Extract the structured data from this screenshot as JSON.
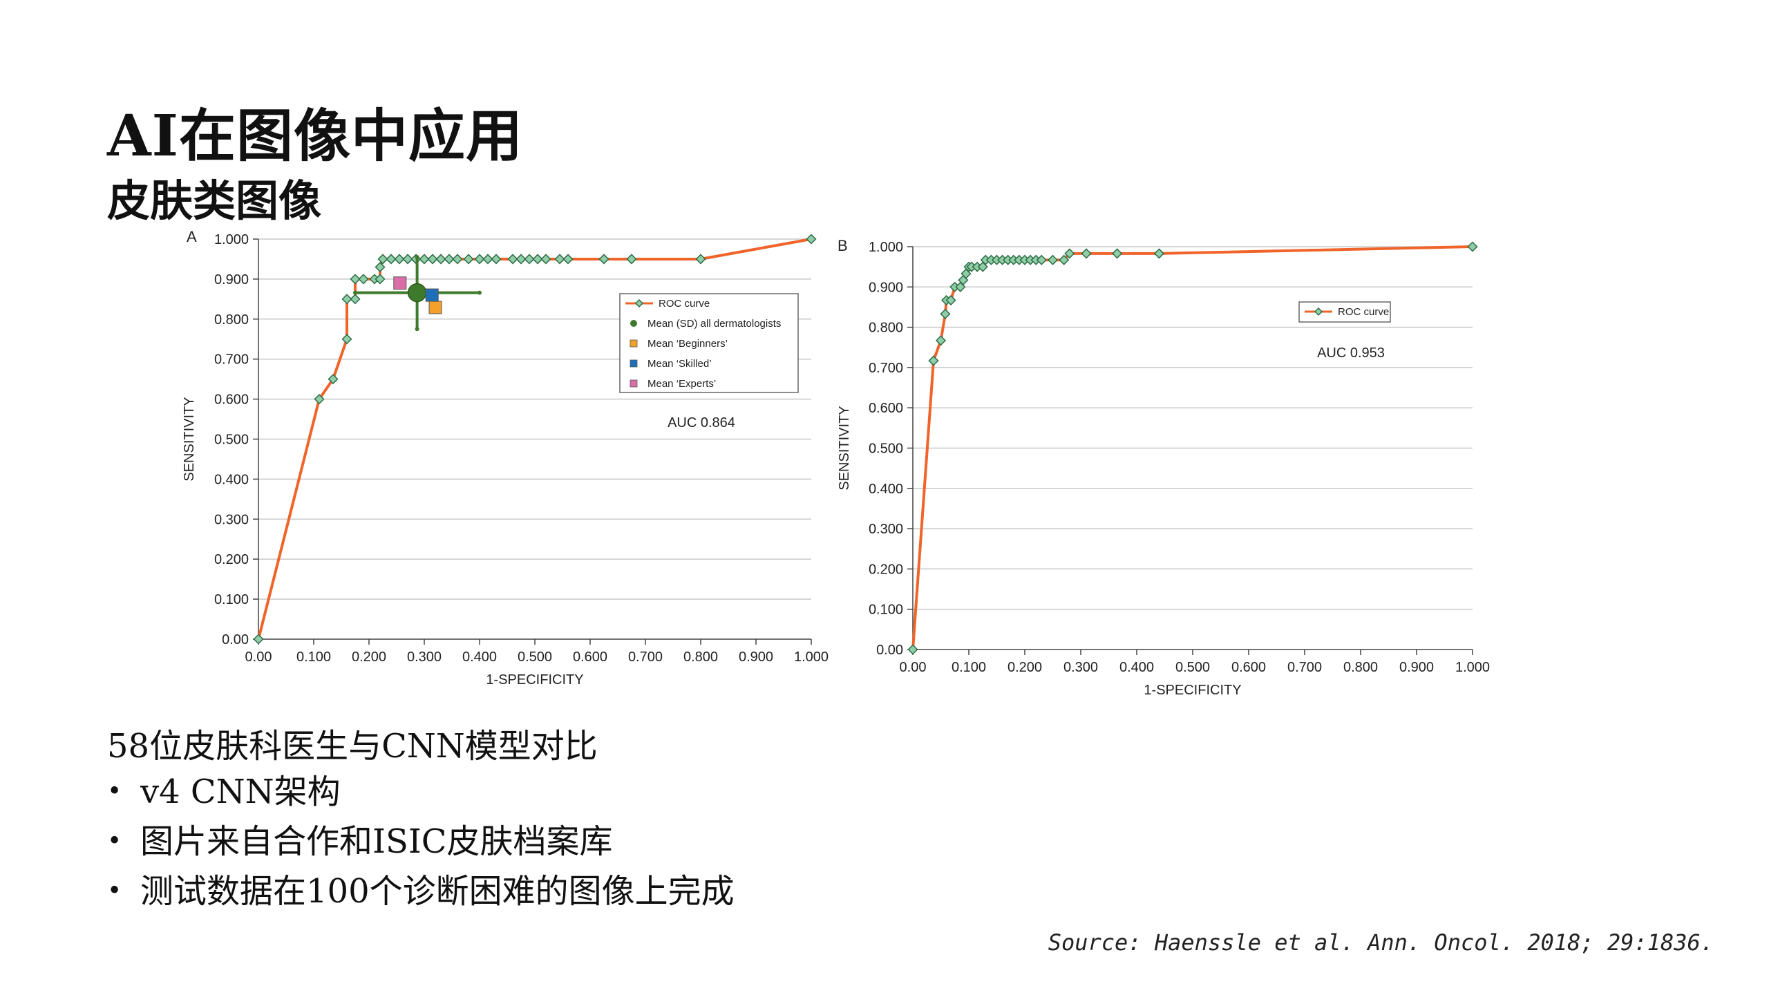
{
  "slide": {
    "title": "AI在图像中应用",
    "subtitle": "皮肤类图像",
    "lead": "58位皮肤科医生与CNN模型对比",
    "bullets": [
      "v4 CNN架构",
      "图片来自合作和ISIC皮肤档案库",
      "测试数据在100个诊断困难的图像上完成"
    ],
    "source": "Source: Haenssle et al. Ann. Oncol. 2018; 29:1836."
  },
  "colors": {
    "roc_line": "#f0642a",
    "marker_fill": "#8fcea6",
    "marker_stroke": "#2e6b46",
    "all_derm": "#3e7a2c",
    "beginners": "#f4a02a",
    "skilled": "#1f6fb8",
    "experts": "#d96fa6",
    "grid": "#c8c8c8"
  },
  "chart_data": [
    {
      "type": "line",
      "panel": "A",
      "xlabel": "1-SPECIFICITY",
      "ylabel": "SENSITIVITY",
      "xlim": [
        0,
        1
      ],
      "ylim": [
        0,
        1
      ],
      "xticks": [
        "0.00",
        "0.100",
        "0.200",
        "0.300",
        "0.400",
        "0.500",
        "0.600",
        "0.700",
        "0.800",
        "0.900",
        "1.000"
      ],
      "yticks": [
        "0.00",
        "0.100",
        "0.200",
        "0.300",
        "0.400",
        "0.500",
        "0.600",
        "0.700",
        "0.800",
        "0.900",
        "1.000"
      ],
      "grid": "horizontal",
      "annotation": "AUC 0.864",
      "legend": {
        "position": "center-right",
        "entries": [
          "ROC curve",
          "Mean (SD) all dermatologists",
          "Mean ‘Beginners’",
          "Mean ‘Skilled’",
          "Mean ‘Experts’"
        ]
      },
      "series": [
        {
          "name": "ROC curve",
          "x": [
            0,
            0.11,
            0.135,
            0.16,
            0.16,
            0.175,
            0.175,
            0.19,
            0.21,
            0.22,
            0.22,
            0.225,
            0.24,
            0.255,
            0.27,
            0.285,
            0.3,
            0.315,
            0.33,
            0.345,
            0.36,
            0.38,
            0.4,
            0.415,
            0.43,
            0.46,
            0.475,
            0.49,
            0.505,
            0.52,
            0.545,
            0.56,
            0.625,
            0.675,
            0.8,
            1.0
          ],
          "y": [
            0,
            0.6,
            0.65,
            0.75,
            0.85,
            0.85,
            0.9,
            0.9,
            0.9,
            0.9,
            0.93,
            0.95,
            0.95,
            0.95,
            0.95,
            0.95,
            0.95,
            0.95,
            0.95,
            0.95,
            0.95,
            0.95,
            0.95,
            0.95,
            0.95,
            0.95,
            0.95,
            0.95,
            0.95,
            0.95,
            0.95,
            0.95,
            0.95,
            0.95,
            0.95,
            1.0
          ]
        }
      ],
      "points": [
        {
          "name": "Mean (SD) all dermatologists",
          "x": 0.287,
          "y": 0.866,
          "x_err": [
            0.175,
            0.4
          ],
          "y_err": [
            0.775,
            0.955
          ]
        },
        {
          "name": "Mean ‘Beginners’",
          "x": 0.32,
          "y": 0.829
        },
        {
          "name": "Mean ‘Skilled’",
          "x": 0.314,
          "y": 0.86
        },
        {
          "name": "Mean ‘Experts’",
          "x": 0.256,
          "y": 0.89
        }
      ]
    },
    {
      "type": "line",
      "panel": "B",
      "xlabel": "1-SPECIFICITY",
      "ylabel": "SENSITIVITY",
      "xlim": [
        0,
        1
      ],
      "ylim": [
        0,
        1
      ],
      "xticks": [
        "0.00",
        "0.100",
        "0.200",
        "0.300",
        "0.400",
        "0.500",
        "0.600",
        "0.700",
        "0.800",
        "0.900",
        "1.000"
      ],
      "yticks": [
        "0.00",
        "0.100",
        "0.200",
        "0.300",
        "0.400",
        "0.500",
        "0.600",
        "0.700",
        "0.800",
        "0.900",
        "1.000"
      ],
      "grid": "horizontal",
      "annotation": "AUC 0.953",
      "legend": {
        "position": "top-right",
        "entries": [
          "ROC curve"
        ]
      },
      "series": [
        {
          "name": "ROC curve",
          "x": [
            0,
            0.037,
            0.05,
            0.058,
            0.06,
            0.068,
            0.075,
            0.085,
            0.09,
            0.095,
            0.1,
            0.105,
            0.115,
            0.125,
            0.13,
            0.14,
            0.15,
            0.16,
            0.17,
            0.18,
            0.19,
            0.2,
            0.21,
            0.22,
            0.23,
            0.25,
            0.27,
            0.28,
            0.31,
            0.365,
            0.44,
            1.0
          ],
          "y": [
            0,
            0.717,
            0.767,
            0.833,
            0.867,
            0.867,
            0.9,
            0.9,
            0.917,
            0.933,
            0.95,
            0.95,
            0.95,
            0.95,
            0.967,
            0.967,
            0.967,
            0.967,
            0.967,
            0.967,
            0.967,
            0.967,
            0.967,
            0.967,
            0.967,
            0.967,
            0.967,
            0.983,
            0.983,
            0.983,
            0.983,
            1.0
          ]
        }
      ]
    }
  ]
}
